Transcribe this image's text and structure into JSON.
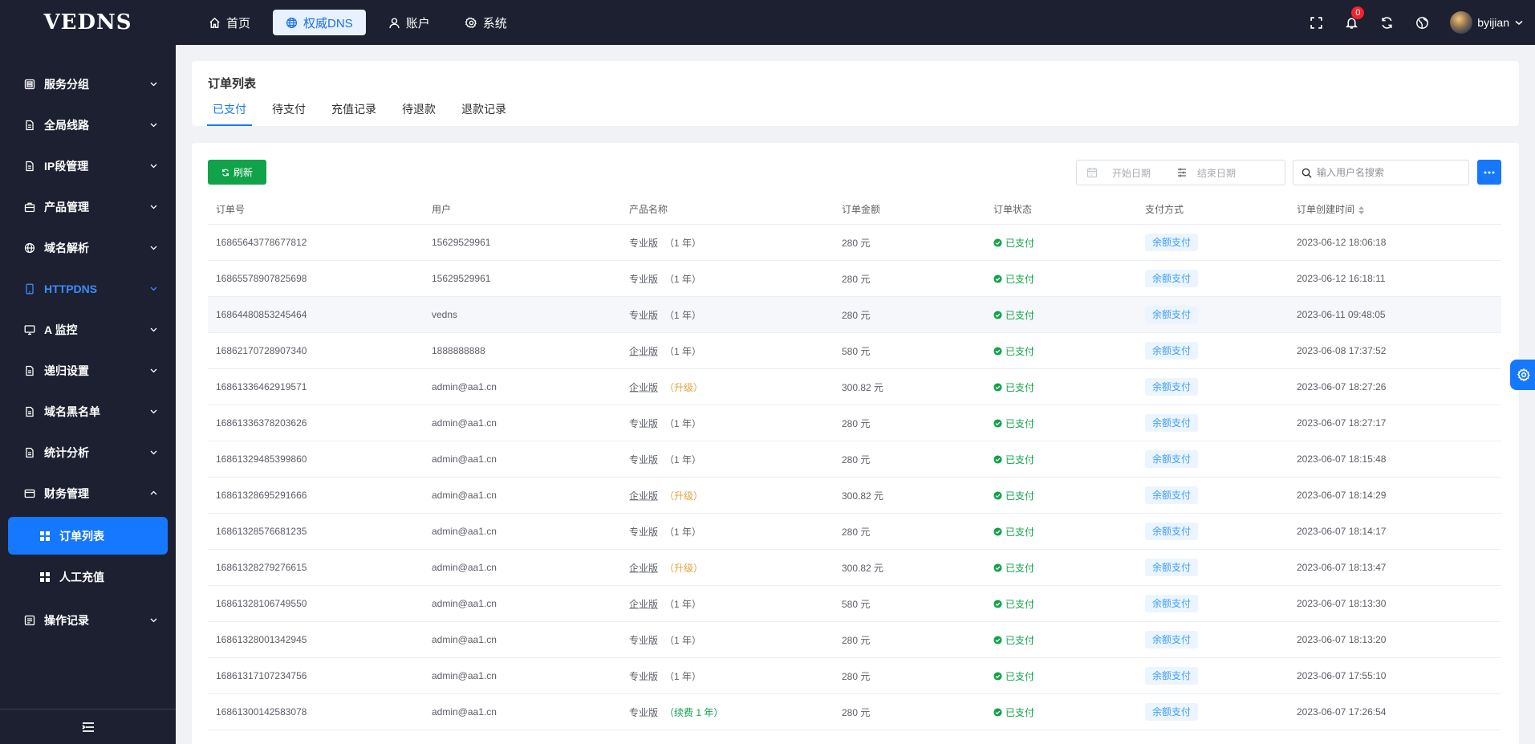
{
  "app": {
    "logo": "VEDNS"
  },
  "topnav": [
    {
      "label": "首页",
      "icon": "home-icon",
      "active": false
    },
    {
      "label": "权威DNS",
      "icon": "globe-icon",
      "active": true
    },
    {
      "label": "账户",
      "icon": "user-icon",
      "active": false
    },
    {
      "label": "系统",
      "icon": "gear-icon",
      "active": false
    }
  ],
  "topright": {
    "notification_count": "0",
    "username": "byijian"
  },
  "sidebar": {
    "items": [
      {
        "label": "服务分组",
        "icon": "server-group-icon"
      },
      {
        "label": "全局线路",
        "icon": "document-icon"
      },
      {
        "label": "IP段管理",
        "icon": "document-icon"
      },
      {
        "label": "产品管理",
        "icon": "briefcase-icon"
      },
      {
        "label": "域名解析",
        "icon": "globe-icon"
      },
      {
        "label": "HTTPDNS",
        "icon": "mobile-icon"
      },
      {
        "label": "A 监控",
        "icon": "monitor-icon"
      },
      {
        "label": "递归设置",
        "icon": "document-icon"
      },
      {
        "label": "域名黑名单",
        "icon": "document-icon"
      },
      {
        "label": "统计分析",
        "icon": "document-icon"
      },
      {
        "label": "财务管理",
        "icon": "wallet-icon"
      },
      {
        "label": "操作记录",
        "icon": "log-icon"
      }
    ],
    "subitems": [
      {
        "label": "订单列表",
        "active": true
      },
      {
        "label": "人工充值",
        "active": false
      }
    ]
  },
  "page": {
    "title": "订单列表",
    "tabs": [
      "已支付",
      "待支付",
      "充值记录",
      "待退款",
      "退款记录"
    ]
  },
  "toolbar": {
    "refresh_label": "刷新",
    "start_date_placeholder": "开始日期",
    "end_date_placeholder": "结束日期",
    "search_placeholder": "输入用户名搜索",
    "more_label": "···"
  },
  "table": {
    "headers": [
      "订单号",
      "用户",
      "产品名称",
      "订单金额",
      "订单状态",
      "支付方式",
      "订单创建时间"
    ],
    "rows": [
      {
        "order_no": "16865643778677812",
        "user": "15629529961",
        "plan": "专业版",
        "term": "（1 年）",
        "term_kind": "normal",
        "amount": "280 元",
        "status": "已支付",
        "payment": "余额支付",
        "created": "2023-06-12 18:06:18"
      },
      {
        "order_no": "16865578907825698",
        "user": "15629529961",
        "plan": "专业版",
        "term": "（1 年）",
        "term_kind": "normal",
        "amount": "280 元",
        "status": "已支付",
        "payment": "余额支付",
        "created": "2023-06-12 16:18:11"
      },
      {
        "order_no": "16864480853245464",
        "user": "vedns",
        "plan": "专业版",
        "term": "（1 年）",
        "term_kind": "normal",
        "amount": "280 元",
        "status": "已支付",
        "payment": "余额支付",
        "created": "2023-06-11 09:48:05"
      },
      {
        "order_no": "16862170728907340",
        "user": "1888888888",
        "plan": "企业版",
        "term": "（1 年）",
        "term_kind": "normal",
        "amount": "580 元",
        "status": "已支付",
        "payment": "余额支付",
        "created": "2023-06-08 17:37:52"
      },
      {
        "order_no": "16861336462919571",
        "user": "admin@aa1.cn",
        "plan": "企业版",
        "term": "（升级）",
        "term_kind": "upgrade",
        "amount": "300.82 元",
        "status": "已支付",
        "payment": "余额支付",
        "created": "2023-06-07 18:27:26"
      },
      {
        "order_no": "16861336378203626",
        "user": "admin@aa1.cn",
        "plan": "专业版",
        "term": "（1 年）",
        "term_kind": "normal",
        "amount": "280 元",
        "status": "已支付",
        "payment": "余额支付",
        "created": "2023-06-07 18:27:17"
      },
      {
        "order_no": "16861329485399860",
        "user": "admin@aa1.cn",
        "plan": "专业版",
        "term": "（1 年）",
        "term_kind": "normal",
        "amount": "280 元",
        "status": "已支付",
        "payment": "余额支付",
        "created": "2023-06-07 18:15:48"
      },
      {
        "order_no": "16861328695291666",
        "user": "admin@aa1.cn",
        "plan": "企业版",
        "term": "（升级）",
        "term_kind": "upgrade",
        "amount": "300.82 元",
        "status": "已支付",
        "payment": "余额支付",
        "created": "2023-06-07 18:14:29"
      },
      {
        "order_no": "16861328576681235",
        "user": "admin@aa1.cn",
        "plan": "专业版",
        "term": "（1 年）",
        "term_kind": "normal",
        "amount": "280 元",
        "status": "已支付",
        "payment": "余额支付",
        "created": "2023-06-07 18:14:17"
      },
      {
        "order_no": "16861328279276615",
        "user": "admin@aa1.cn",
        "plan": "企业版",
        "term": "（升级）",
        "term_kind": "upgrade",
        "amount": "300.82 元",
        "status": "已支付",
        "payment": "余额支付",
        "created": "2023-06-07 18:13:47"
      },
      {
        "order_no": "16861328106749550",
        "user": "admin@aa1.cn",
        "plan": "企业版",
        "term": "（1 年）",
        "term_kind": "normal",
        "amount": "580 元",
        "status": "已支付",
        "payment": "余额支付",
        "created": "2023-06-07 18:13:30"
      },
      {
        "order_no": "16861328001342945",
        "user": "admin@aa1.cn",
        "plan": "专业版",
        "term": "（1 年）",
        "term_kind": "normal",
        "amount": "280 元",
        "status": "已支付",
        "payment": "余额支付",
        "created": "2023-06-07 18:13:20"
      },
      {
        "order_no": "16861317107234756",
        "user": "admin@aa1.cn",
        "plan": "专业版",
        "term": "（1 年）",
        "term_kind": "normal",
        "amount": "280 元",
        "status": "已支付",
        "payment": "余额支付",
        "created": "2023-06-07 17:55:10"
      },
      {
        "order_no": "16861300142583078",
        "user": "admin@aa1.cn",
        "plan": "专业版",
        "term": "（续费 1 年）",
        "term_kind": "renew",
        "amount": "280 元",
        "status": "已支付",
        "payment": "余额支付",
        "created": "2023-06-07 17:26:54"
      }
    ]
  },
  "colors": {
    "accent": "#1677ff",
    "success": "#11a34a",
    "warning": "#e6a23c",
    "dark_bg": "#1c2030"
  }
}
